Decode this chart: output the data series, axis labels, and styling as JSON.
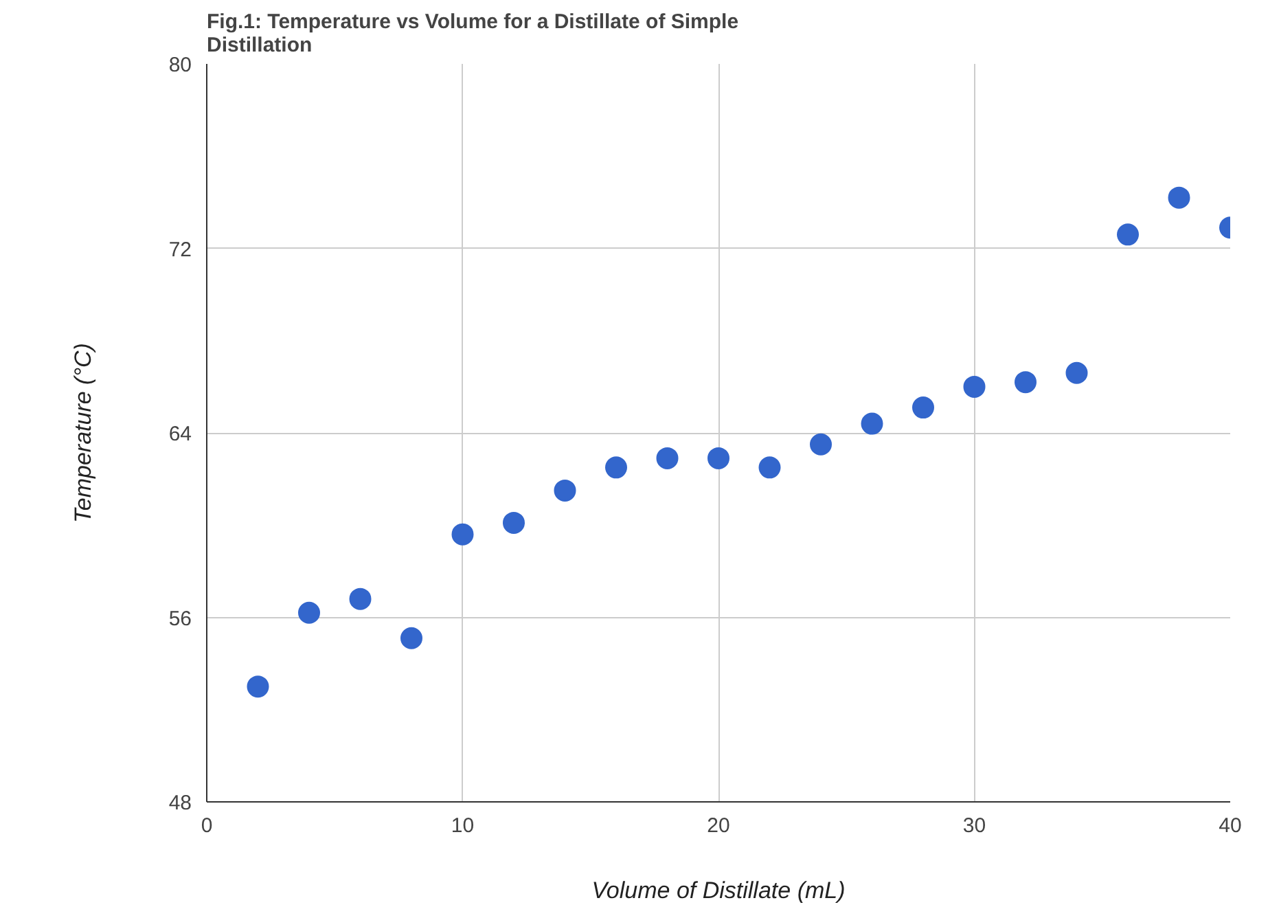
{
  "chart_data": {
    "type": "scatter",
    "title": "Fig.1: Temperature vs Volume for a Distillate of Simple\nDistillation",
    "xlabel": "Volume of Distillate (mL)",
    "ylabel": "Temperature (°C)",
    "x": [
      2,
      4,
      6,
      8,
      10,
      12,
      14,
      16,
      18,
      20,
      22,
      24,
      26,
      28,
      30,
      32,
      34,
      36,
      38,
      40
    ],
    "series": [
      {
        "color": "#3366cc",
        "values": [
          53.0,
          56.2,
          56.8,
          55.1,
          59.6,
          60.1,
          61.5,
          62.5,
          62.9,
          62.9,
          62.5,
          63.5,
          64.4,
          65.1,
          66.0,
          66.2,
          66.6,
          72.6,
          74.2,
          72.9
        ]
      }
    ],
    "xlim": [
      0,
      40
    ],
    "ylim": [
      48,
      80
    ],
    "xticks": [
      0,
      10,
      20,
      30,
      40
    ],
    "yticks": [
      48,
      56,
      64,
      72,
      80
    ],
    "grid": true,
    "marker": "circle"
  }
}
